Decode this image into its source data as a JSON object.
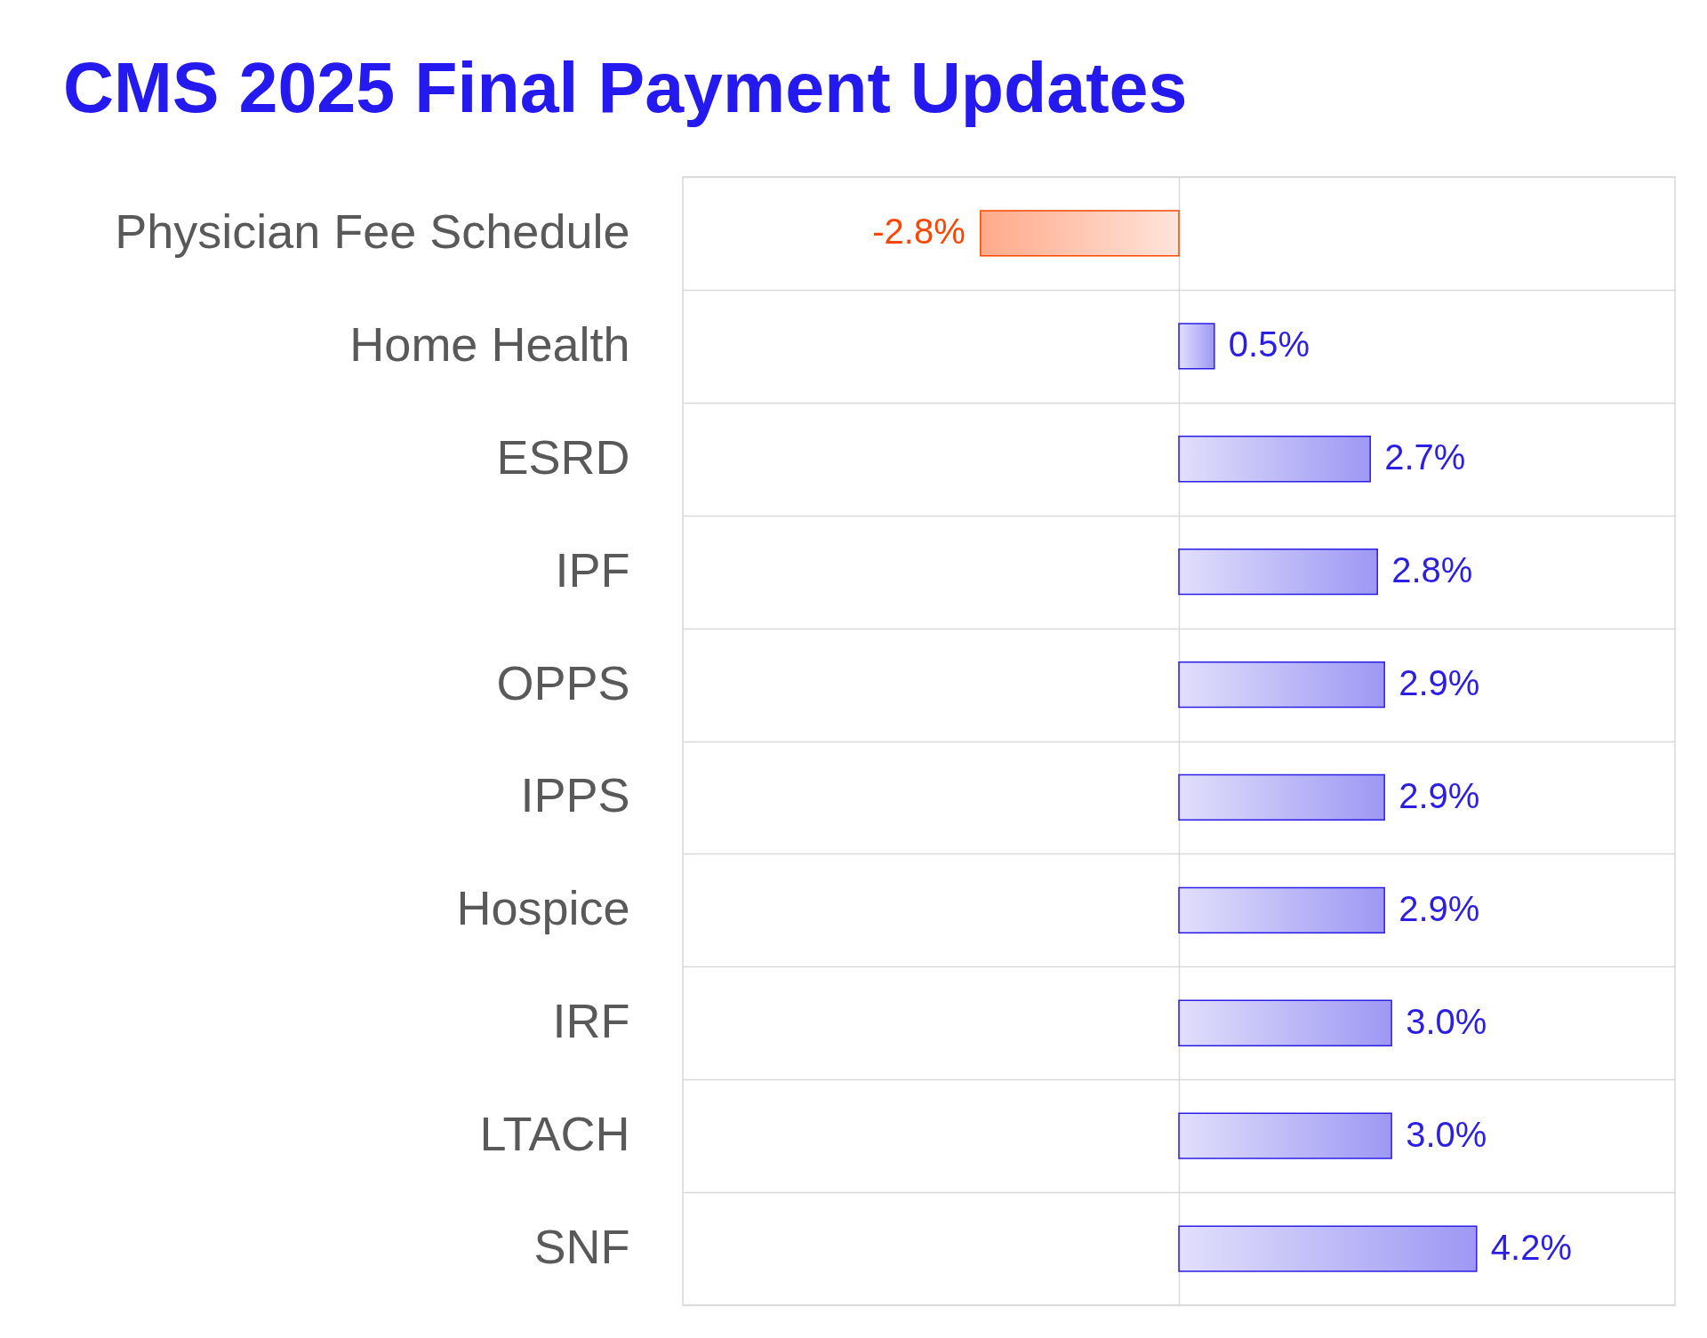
{
  "chart_data": {
    "type": "bar",
    "title": "CMS 2025 Final Payment Updates",
    "orientation": "horizontal",
    "categories": [
      "Physician Fee Schedule",
      "Home Health",
      "ESRD",
      "IPF",
      "OPPS",
      "IPPS",
      "Hospice",
      "IRF",
      "LTACH",
      "SNF"
    ],
    "values": [
      -2.8,
      0.5,
      2.7,
      2.8,
      2.9,
      2.9,
      2.9,
      3.0,
      3.0,
      4.2
    ],
    "colors": [
      "#ff4500",
      "#2b1fe6",
      "#2b1fe6",
      "#2b1fe6",
      "#2b1fe6",
      "#2b1fe6",
      "#2b1fe6",
      "#2b1fe6",
      "#2b1fe6",
      "#2b1fe6"
    ],
    "value_labels": [
      "-2.8%",
      "0.5%",
      "2.7%",
      "2.8%",
      "2.9%",
      "2.9%",
      "2.9%",
      "3.0%",
      "3.0%",
      "4.2%"
    ],
    "xlim": [
      -7,
      7
    ],
    "xticks": [
      {
        "value": 0,
        "label": null
      }
    ],
    "grid": true,
    "tick_labels": "y"
  }
}
